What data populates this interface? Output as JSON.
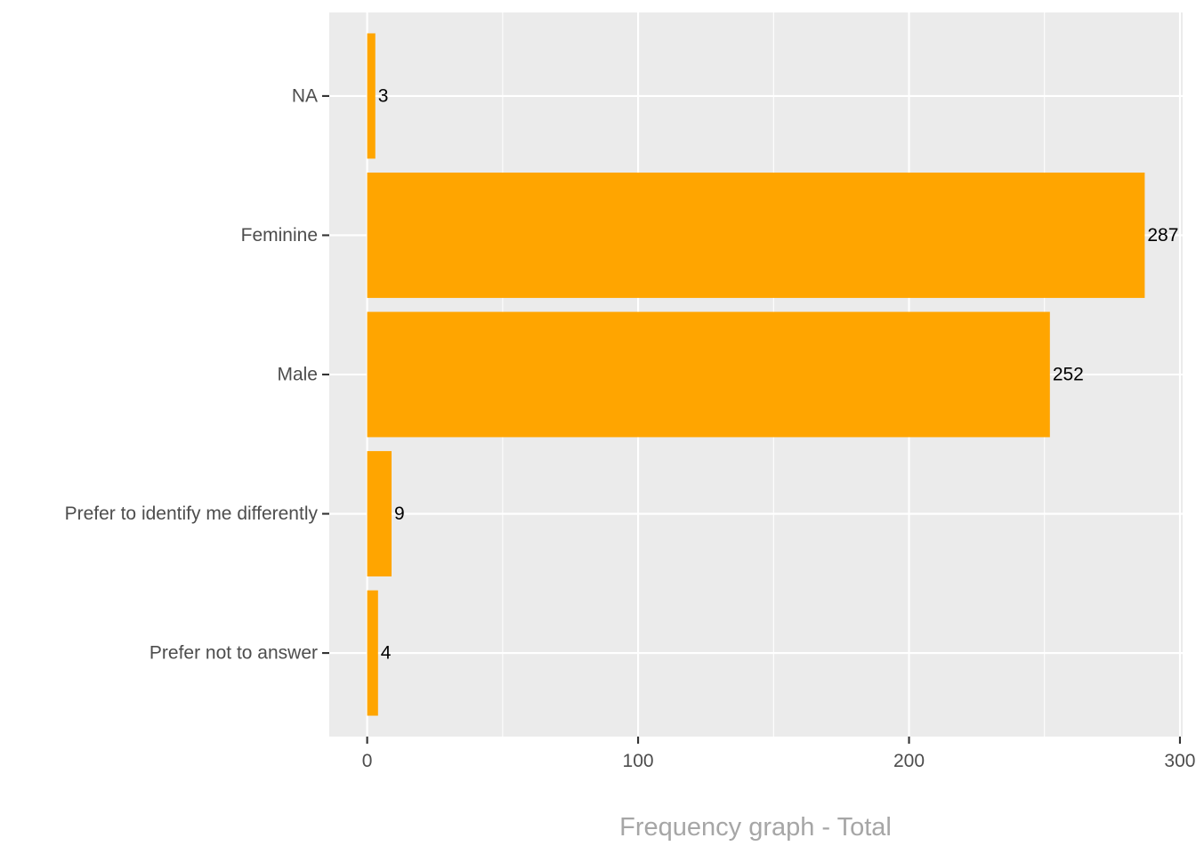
{
  "chart_data": {
    "type": "bar",
    "orientation": "horizontal",
    "categories": [
      "NA",
      "Feminine",
      "Male",
      "Prefer to identify me differently",
      "Prefer not to answer"
    ],
    "values": [
      3,
      287,
      252,
      9,
      4
    ],
    "data_labels": [
      "3",
      "287",
      "252",
      "9",
      "4"
    ],
    "xlabel": "Frequency graph - Total",
    "ylabel": "",
    "title": "",
    "xlim": [
      -14,
      301
    ],
    "x_ticks": [
      0,
      100,
      200,
      300
    ],
    "x_tick_labels": [
      "0",
      "100",
      "200",
      "300"
    ],
    "grid": true,
    "legend": "none",
    "colors": {
      "bar": "#FFA500",
      "panel": "#EBEBEB",
      "grid": "#FFFFFF",
      "tick_text": "#4D4D4D",
      "axis_title": "#A6A6A6",
      "data_label": "#000000"
    }
  }
}
